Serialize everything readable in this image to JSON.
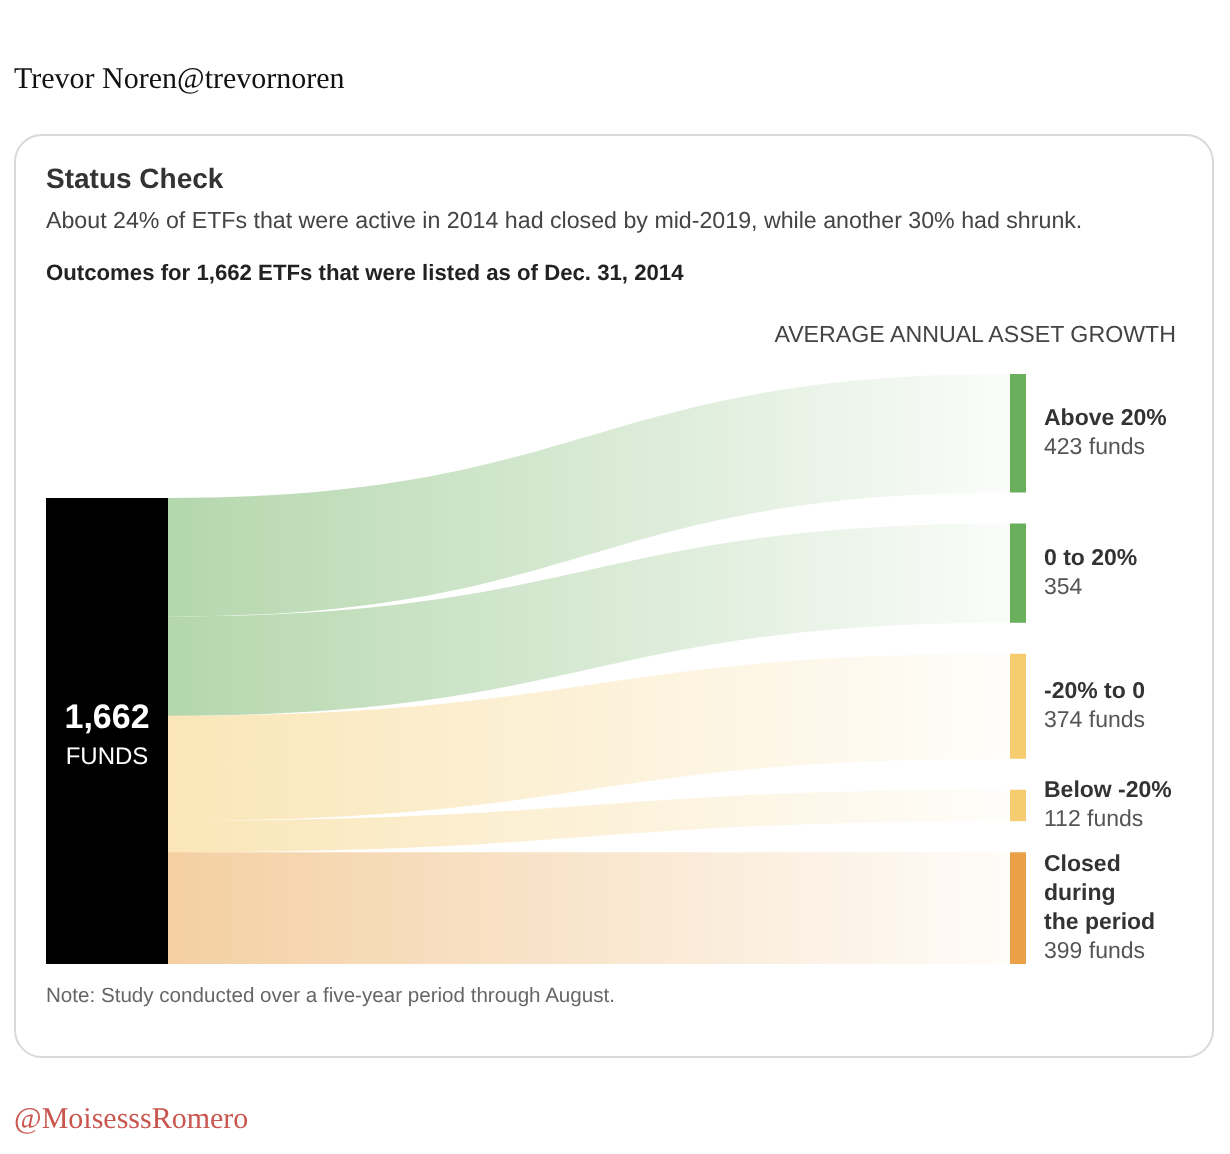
{
  "chart_data": {
    "type": "other",
    "title": "Status Check",
    "subtitle": "About 24% of ETFs that were active in 2014 had closed by mid-2019, while another 30% had shrunk.",
    "categories": [
      "Above 20%",
      "0 to 20%",
      "-20% to 0",
      "Below -20%",
      "Closed during the period"
    ],
    "values": [
      423,
      354,
      374,
      112,
      399
    ],
    "colors": [
      "#6aaf5b",
      "#6aaf5b",
      "#f5cd70",
      "#f5cd70",
      "#e9a046"
    ],
    "value_labels": [
      "423 funds",
      "354",
      "374 funds",
      "112 funds",
      "399 funds"
    ],
    "totals": [
      "1,662"
    ],
    "annotations": [
      "Trevor Noren@trevornoren",
      "Outcomes for 1,662 ETFs that were listed as of Dec. 31, 2014",
      "AVERAGE ANNUAL ASSET GROWTH",
      "FUNDS",
      "Note: Study conducted over a five-year period through August.",
      "@MoisesssRomero"
    ]
  }
}
